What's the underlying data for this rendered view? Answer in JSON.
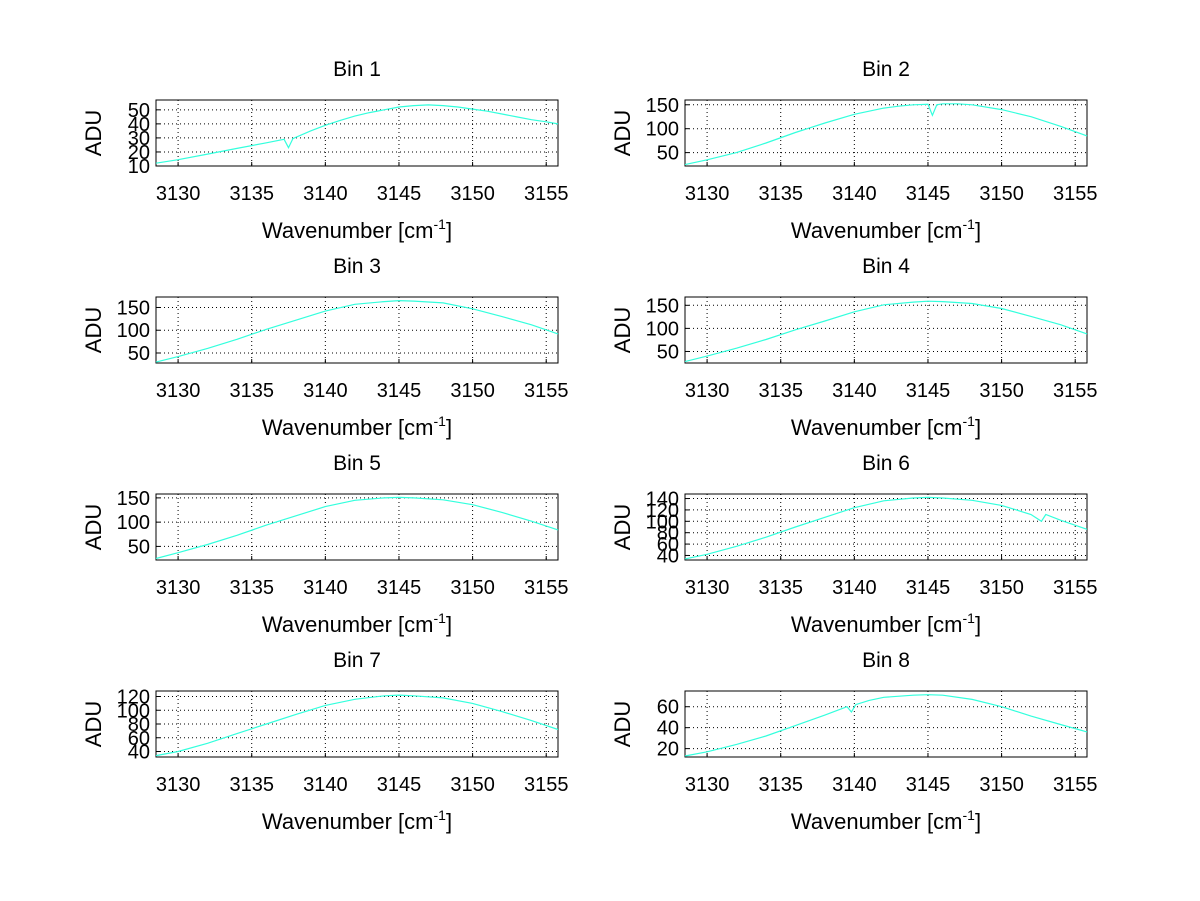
{
  "figure": {
    "background": "#ffffff",
    "line_color": "#33ffdd",
    "grid_color": "#000000"
  },
  "chart_data": [
    {
      "type": "line",
      "title": "Bin 1",
      "xlabel": "Wavenumber [cm-1]",
      "ylabel": "ADU",
      "xlim": [
        3128.5,
        3155.8
      ],
      "ylim": [
        10,
        57
      ],
      "xticks": [
        3130,
        3135,
        3140,
        3145,
        3150,
        3155
      ],
      "yticks": [
        10,
        20,
        30,
        40,
        50
      ],
      "yticklabels": [
        "10",
        "20",
        "30",
        "40",
        "50"
      ],
      "grid": true,
      "series": [
        {
          "x": [
            3128.5,
            3130,
            3132,
            3134,
            3136,
            3137.2,
            3137.5,
            3137.8,
            3139,
            3140,
            3141,
            3142,
            3143,
            3144,
            3145,
            3146,
            3147,
            3148,
            3149,
            3150,
            3151,
            3152,
            3153,
            3154,
            3155,
            3155.8
          ],
          "y": [
            12,
            14.5,
            18.5,
            22.5,
            26.5,
            29,
            23,
            29.5,
            35,
            39,
            42.5,
            45.5,
            48,
            50,
            52,
            53,
            53.5,
            53,
            52,
            50.5,
            49,
            47,
            45,
            43,
            41.5,
            40
          ]
        }
      ]
    },
    {
      "type": "line",
      "title": "Bin 2",
      "xlabel": "Wavenumber [cm-1]",
      "ylabel": "ADU",
      "xlim": [
        3128.5,
        3155.8
      ],
      "ylim": [
        22,
        160
      ],
      "xticks": [
        3130,
        3135,
        3140,
        3145,
        3150,
        3155
      ],
      "yticks": [
        50,
        100,
        150
      ],
      "yticklabels": [
        "50",
        "100",
        "150"
      ],
      "grid": true,
      "series": [
        {
          "x": [
            3128.5,
            3130,
            3132,
            3134,
            3136,
            3138,
            3140,
            3142,
            3143,
            3144,
            3145,
            3145.3,
            3145.6,
            3146,
            3147,
            3148,
            3150,
            3152,
            3154,
            3155.8
          ],
          "y": [
            25,
            35,
            50,
            70,
            92,
            112,
            130,
            143,
            147,
            150,
            151,
            128,
            150,
            152,
            152,
            150,
            140,
            125,
            105,
            85
          ]
        }
      ]
    },
    {
      "type": "line",
      "title": "Bin 3",
      "xlabel": "Wavenumber [cm-1]",
      "ylabel": "ADU",
      "xlim": [
        3128.5,
        3155.8
      ],
      "ylim": [
        28,
        173
      ],
      "xticks": [
        3130,
        3135,
        3140,
        3145,
        3150,
        3155
      ],
      "yticks": [
        50,
        100,
        150
      ],
      "yticklabels": [
        "50",
        "100",
        "150"
      ],
      "grid": true,
      "series": [
        {
          "x": [
            3128.5,
            3130,
            3132,
            3134,
            3136,
            3138,
            3140,
            3142,
            3144,
            3145,
            3146,
            3148,
            3150,
            3152,
            3154,
            3155.8
          ],
          "y": [
            30,
            42,
            60,
            80,
            102,
            122,
            142,
            157,
            163,
            165,
            164,
            160,
            147,
            130,
            112,
            92
          ]
        }
      ]
    },
    {
      "type": "line",
      "title": "Bin 4",
      "xlabel": "Wavenumber [cm-1]",
      "ylabel": "ADU",
      "xlim": [
        3128.5,
        3155.8
      ],
      "ylim": [
        25,
        168
      ],
      "xticks": [
        3130,
        3135,
        3140,
        3145,
        3150,
        3155
      ],
      "yticks": [
        50,
        100,
        150
      ],
      "yticklabels": [
        "50",
        "100",
        "150"
      ],
      "grid": true,
      "series": [
        {
          "x": [
            3128.5,
            3130,
            3132,
            3134,
            3136,
            3138,
            3140,
            3142,
            3144,
            3145,
            3146,
            3148,
            3150,
            3152,
            3154,
            3155.8
          ],
          "y": [
            28,
            40,
            57,
            76,
            97,
            116,
            136,
            151,
            157,
            159,
            158,
            154,
            143,
            126,
            108,
            88
          ]
        }
      ]
    },
    {
      "type": "line",
      "title": "Bin 5",
      "xlabel": "Wavenumber [cm-1]",
      "ylabel": "ADU",
      "xlim": [
        3128.5,
        3155.8
      ],
      "ylim": [
        22,
        158
      ],
      "xticks": [
        3130,
        3135,
        3140,
        3145,
        3150,
        3155
      ],
      "yticks": [
        50,
        100,
        150
      ],
      "yticklabels": [
        "50",
        "100",
        "150"
      ],
      "grid": true,
      "series": [
        {
          "x": [
            3128.5,
            3130,
            3132,
            3134,
            3136,
            3138,
            3140,
            3142,
            3144,
            3145,
            3146,
            3148,
            3150,
            3152,
            3154,
            3155.8
          ],
          "y": [
            25,
            37,
            54,
            73,
            94,
            113,
            132,
            145,
            150,
            151,
            150,
            146,
            136,
            120,
            102,
            84
          ]
        }
      ]
    },
    {
      "type": "line",
      "title": "Bin 6",
      "xlabel": "Wavenumber [cm-1]",
      "ylabel": "ADU",
      "xlim": [
        3128.5,
        3155.8
      ],
      "ylim": [
        32,
        148
      ],
      "xticks": [
        3130,
        3135,
        3140,
        3145,
        3150,
        3155
      ],
      "yticks": [
        40,
        60,
        80,
        100,
        120,
        140
      ],
      "yticklabels": [
        "40",
        "60",
        "80",
        "100",
        "120",
        "140"
      ],
      "grid": true,
      "series": [
        {
          "x": [
            3128.5,
            3130,
            3132,
            3134,
            3136,
            3138,
            3140,
            3142,
            3144,
            3145,
            3146,
            3148,
            3150,
            3152,
            3152.7,
            3153,
            3154,
            3155.8
          ],
          "y": [
            34,
            42,
            56,
            72,
            90,
            107,
            124,
            136,
            141,
            142,
            141,
            137,
            128,
            112,
            100,
            112,
            102,
            86
          ]
        }
      ]
    },
    {
      "type": "line",
      "title": "Bin 7",
      "xlabel": "Wavenumber [cm-1]",
      "ylabel": "ADU",
      "xlim": [
        3128.5,
        3155.8
      ],
      "ylim": [
        32,
        128
      ],
      "xticks": [
        3130,
        3135,
        3140,
        3145,
        3150,
        3155
      ],
      "yticks": [
        40,
        60,
        80,
        100,
        120
      ],
      "yticklabels": [
        "40",
        "60",
        "80",
        "100",
        "120"
      ],
      "grid": true,
      "series": [
        {
          "x": [
            3128.5,
            3130,
            3132,
            3134,
            3136,
            3138,
            3140,
            3142,
            3144,
            3145,
            3146,
            3148,
            3150,
            3152,
            3154,
            3155.8
          ],
          "y": [
            34,
            40,
            52,
            66,
            80,
            94,
            107,
            116,
            121,
            122,
            121,
            118,
            110,
            98,
            85,
            72
          ]
        }
      ]
    },
    {
      "type": "line",
      "title": "Bin 8",
      "xlabel": "Wavenumber [cm-1]",
      "ylabel": "ADU",
      "xlim": [
        3128.5,
        3155.8
      ],
      "ylim": [
        12,
        75
      ],
      "xticks": [
        3130,
        3135,
        3140,
        3145,
        3150,
        3155
      ],
      "yticks": [
        20,
        40,
        60
      ],
      "yticklabels": [
        "20",
        "40",
        "60"
      ],
      "grid": true,
      "series": [
        {
          "x": [
            3128.5,
            3130,
            3132,
            3134,
            3136,
            3138,
            3139.5,
            3139.8,
            3140.1,
            3141,
            3142,
            3144,
            3145,
            3146,
            3148,
            3150,
            3152,
            3154,
            3155.8
          ],
          "y": [
            13,
            17,
            24,
            32,
            42,
            52,
            60,
            55,
            62,
            66,
            69,
            71,
            71.5,
            71,
            67,
            60,
            51,
            43,
            36
          ]
        }
      ]
    }
  ]
}
